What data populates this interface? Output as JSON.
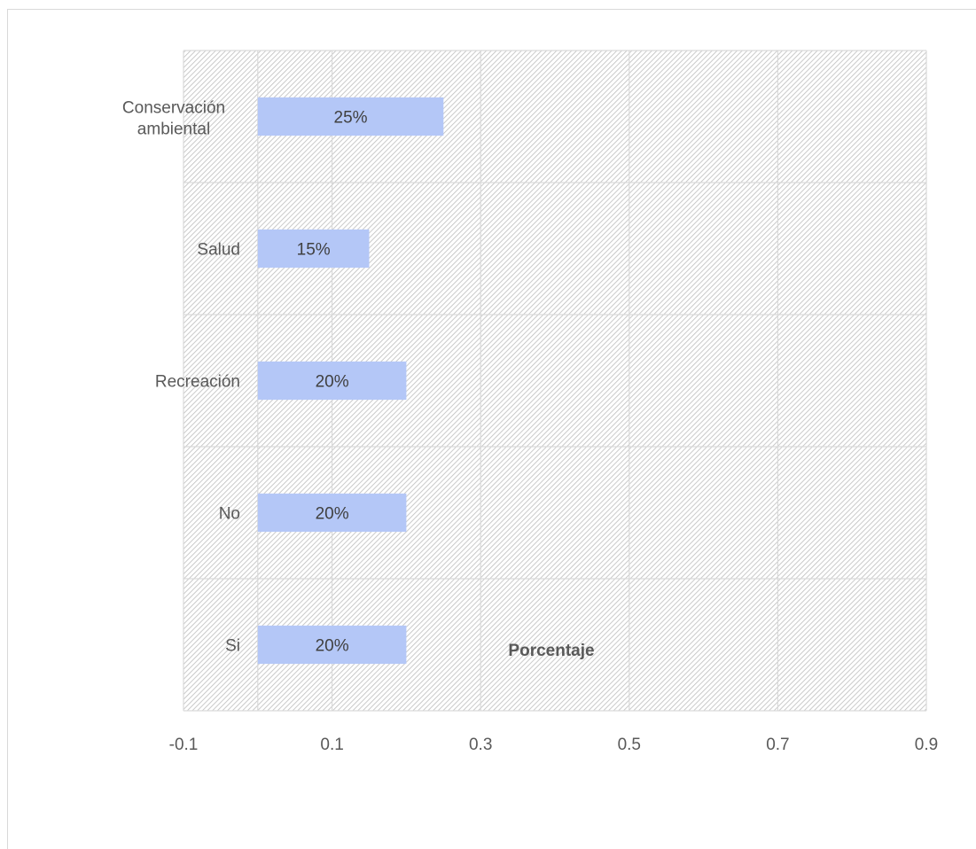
{
  "chart_data": {
    "type": "bar",
    "orientation": "horizontal",
    "categories": [
      "Conservación ambiental",
      "Salud",
      "Recreación",
      "No",
      "Si"
    ],
    "values": [
      0.25,
      0.15,
      0.2,
      0.2,
      0.2
    ],
    "data_labels": [
      "25%",
      "15%",
      "20%",
      "20%",
      "20%"
    ],
    "xlabel": "Porcentaje",
    "ylabel": "",
    "xlim": [
      -0.1,
      0.9
    ],
    "x_ticks": [
      "-0.1",
      "0.1",
      "0.3",
      "0.5",
      "0.7",
      "0.9"
    ],
    "grid": true,
    "bar_color": "#b4c7f7",
    "plot_background": "hatched-gray"
  }
}
